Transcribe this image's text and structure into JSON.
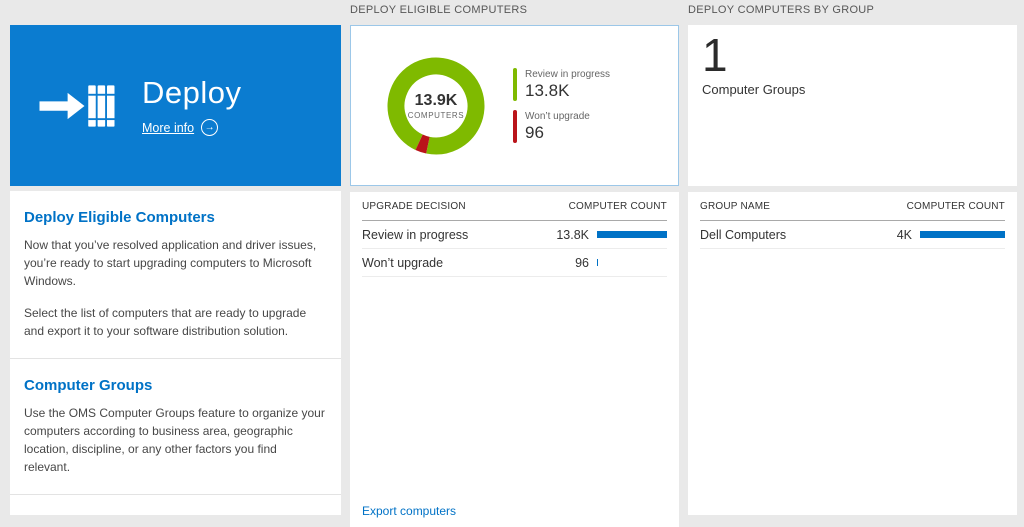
{
  "left": {
    "tile": {
      "title": "Deploy",
      "more_info": "More info"
    },
    "sections": [
      {
        "heading": "Deploy Eligible Computers",
        "paragraphs": [
          "Now that you’ve resolved application and driver issues, you’re ready to start upgrading computers to Microsoft Windows.",
          "Select the list of computers that are ready to upgrade and export it to your software distribution solution."
        ]
      },
      {
        "heading": "Computer Groups",
        "paragraphs": [
          "Use the OMS Computer Groups feature to organize your computers according to business area, geographic location, discipline, or any other factors you find relevant."
        ]
      }
    ]
  },
  "middle": {
    "header": "DEPLOY ELIGIBLE COMPUTERS",
    "donut": {
      "center_value": "13.9K",
      "center_label": "COMPUTERS",
      "legend": [
        {
          "label": "Review in progress",
          "value": "13.8K",
          "color": "#7fba00"
        },
        {
          "label": "Won’t upgrade",
          "value": "96",
          "color": "#ba141a"
        }
      ]
    },
    "table": {
      "columns": [
        "UPGRADE DECISION",
        "COMPUTER COUNT"
      ],
      "rows": [
        {
          "label": "Review in progress",
          "value": "13.8K",
          "bar_pct": 100
        },
        {
          "label": "Won’t upgrade",
          "value": "96",
          "bar_pct": 2
        }
      ]
    },
    "footer_link": "Export computers"
  },
  "right": {
    "header": "DEPLOY COMPUTERS BY GROUP",
    "summary": {
      "value": "1",
      "label": "Computer Groups"
    },
    "table": {
      "columns": [
        "GROUP NAME",
        "COMPUTER COUNT"
      ],
      "rows": [
        {
          "label": "Dell Computers",
          "value": "4K",
          "bar_pct": 100
        }
      ]
    }
  },
  "chart_data": {
    "type": "pie",
    "title": "DEPLOY ELIGIBLE COMPUTERS",
    "labels": [
      "Review in progress",
      "Won’t upgrade"
    ],
    "values": [
      13800,
      96
    ],
    "colors": [
      "#7fba00",
      "#ba141a"
    ],
    "center_label": "13.9K COMPUTERS",
    "legend_position": "right"
  },
  "colors": {
    "accent_blue": "#0072c6",
    "tile_blue": "#0b7cd0",
    "green": "#7fba00",
    "red": "#ba141a"
  }
}
